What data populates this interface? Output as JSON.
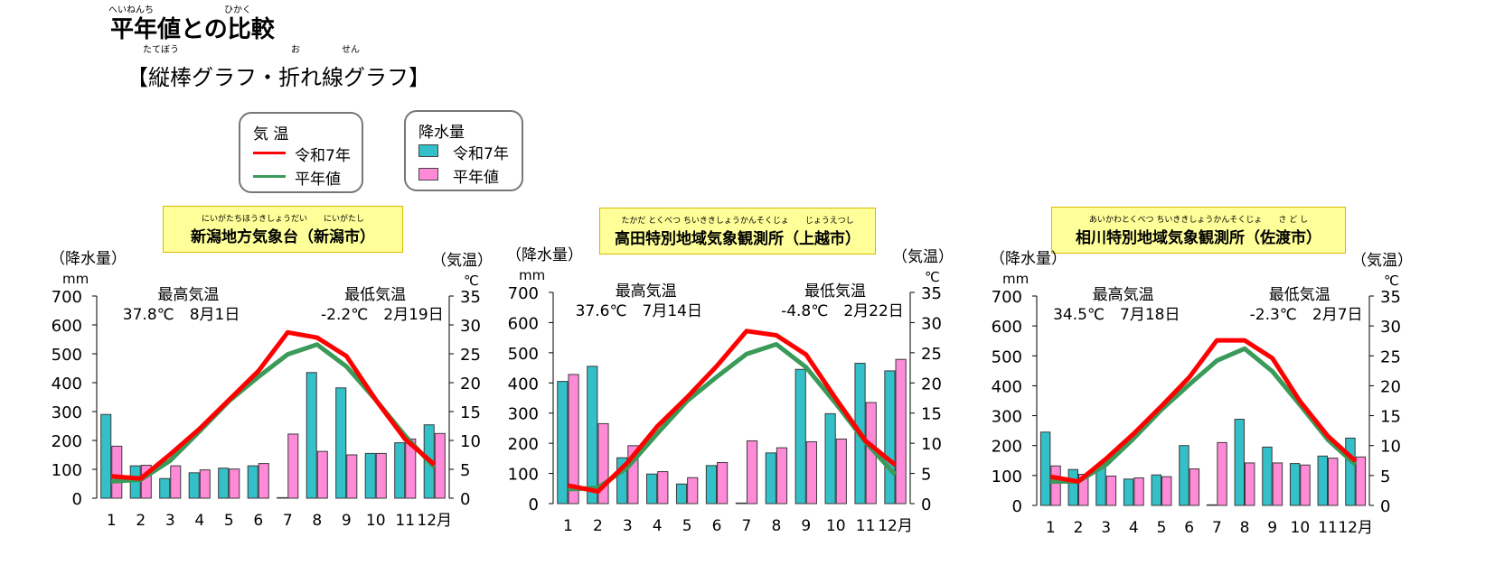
{
  "header": {
    "title": "平年値との比較",
    "title_ruby": [
      "へいねんち",
      "ひかく"
    ],
    "subtitle": "【縦棒グラフ・折れ線グラフ】",
    "subtitle_ruby": [
      "たてぼう",
      "お",
      "せん"
    ]
  },
  "legend_temp": {
    "title": "気 温",
    "items": [
      "令和7年",
      "平年値"
    ]
  },
  "legend_precip": {
    "title": "降水量",
    "items": [
      "令和7年",
      "平年値"
    ]
  },
  "colors": {
    "temp_2025": "#ff0000",
    "temp_normal": "#3a9a5a",
    "precip_2025": "#33c0c8",
    "precip_normal": "#ff8ad8"
  },
  "chart_data": [
    {
      "type": "bar",
      "station": "新潟地方気象台（新潟市）",
      "station_ruby": "にいがたちほうきしょうだい　　にいがたし",
      "left_axis_label": "（降水量）",
      "left_unit": "mm",
      "right_axis_label": "（気温）",
      "right_unit": "℃",
      "max_label": "最高気温",
      "max_value": "37.8℃　8月1日",
      "min_label": "最低気温",
      "min_value": "-2.2℃　2月19日",
      "categories": [
        "1",
        "2",
        "3",
        "4",
        "5",
        "6",
        "7",
        "8",
        "9",
        "10",
        "11",
        "12月"
      ],
      "left_ticks": [
        "0",
        "100",
        "200",
        "300",
        "400",
        "500",
        "600",
        "700"
      ],
      "right_ticks": [
        "0",
        "5",
        "10",
        "15",
        "20",
        "25",
        "30",
        "35"
      ],
      "ylim_left": [
        0,
        700
      ],
      "ylim_right": [
        0,
        35
      ],
      "precip_2025": [
        290,
        112,
        68,
        88,
        104,
        112,
        2,
        435,
        382,
        155,
        192,
        254
      ],
      "precip_normal": [
        180,
        114,
        112,
        98,
        101,
        120,
        222,
        162,
        150,
        155,
        205,
        224
      ],
      "temp_2025": [
        3.8,
        3.4,
        7.6,
        12.0,
        17.0,
        22.0,
        28.7,
        27.8,
        24.6,
        17.0,
        10.2,
        5.8
      ],
      "temp_normal": [
        2.9,
        3.2,
        6.5,
        11.6,
        16.8,
        21.0,
        24.9,
        26.6,
        22.8,
        17.0,
        10.8,
        5.3
      ]
    },
    {
      "type": "bar",
      "station": "高田特別地域気象観測所（上越市）",
      "station_ruby": "たかだ とくべつ ちいききしょうかんそくじょ　　じょうえつし",
      "left_axis_label": "（降水量）",
      "left_unit": "mm",
      "right_axis_label": "（気温）",
      "right_unit": "℃",
      "max_label": "最高気温",
      "max_value": "37.6℃　7月14日",
      "min_label": "最低気温",
      "min_value": "-4.8℃　2月22日",
      "categories": [
        "1",
        "2",
        "3",
        "4",
        "5",
        "6",
        "7",
        "8",
        "9",
        "10",
        "11",
        "12月"
      ],
      "left_ticks": [
        "0",
        "100",
        "200",
        "300",
        "400",
        "500",
        "600",
        "700"
      ],
      "right_ticks": [
        "0",
        "5",
        "10",
        "15",
        "20",
        "25",
        "30",
        "35"
      ],
      "ylim_left": [
        0,
        700
      ],
      "ylim_right": [
        0,
        35
      ],
      "precip_2025": [
        405,
        455,
        152,
        98,
        65,
        126,
        2,
        168,
        445,
        298,
        465,
        440
      ],
      "precip_normal": [
        428,
        265,
        192,
        106,
        86,
        136,
        208,
        185,
        205,
        214,
        335,
        478
      ],
      "temp_2025": [
        3.0,
        2.0,
        6.8,
        12.8,
        17.6,
        22.8,
        28.6,
        27.9,
        24.7,
        17.4,
        10.4,
        6.4
      ],
      "temp_normal": [
        2.4,
        2.6,
        6.0,
        11.6,
        17.0,
        21.0,
        24.8,
        26.4,
        22.6,
        16.6,
        10.2,
        4.8
      ]
    },
    {
      "type": "bar",
      "station": "相川特別地域気象観測所（佐渡市）",
      "station_ruby": "あいかわとくべつ ちいききしょうかんそくじょ　　さ ど し",
      "left_axis_label": "（降水量）",
      "left_unit": "mm",
      "right_axis_label": "（気温）",
      "right_unit": "℃",
      "max_label": "最高気温",
      "max_value": "34.5℃　7月18日",
      "min_label": "最低気温",
      "min_value": "-2.3℃　2月7日",
      "categories": [
        "1",
        "2",
        "3",
        "4",
        "5",
        "6",
        "7",
        "8",
        "9",
        "10",
        "11",
        "12月"
      ],
      "left_ticks": [
        "0",
        "100",
        "200",
        "300",
        "400",
        "500",
        "600",
        "700"
      ],
      "right_ticks": [
        "0",
        "5",
        "10",
        "15",
        "20",
        "25",
        "30",
        "35"
      ],
      "ylim_left": [
        0,
        700
      ],
      "ylim_right": [
        0,
        35
      ],
      "precip_2025": [
        245,
        120,
        128,
        88,
        102,
        200,
        2,
        288,
        195,
        140,
        165,
        225
      ],
      "precip_normal": [
        132,
        104,
        98,
        92,
        96,
        122,
        210,
        142,
        142,
        135,
        158,
        162
      ],
      "temp_2025": [
        4.8,
        4.0,
        7.8,
        12.0,
        16.6,
        21.4,
        27.6,
        27.6,
        24.6,
        17.4,
        11.6,
        7.4
      ],
      "temp_normal": [
        4.0,
        4.0,
        6.8,
        11.2,
        16.0,
        20.2,
        24.2,
        26.2,
        22.4,
        16.8,
        11.0,
        6.8
      ]
    }
  ]
}
